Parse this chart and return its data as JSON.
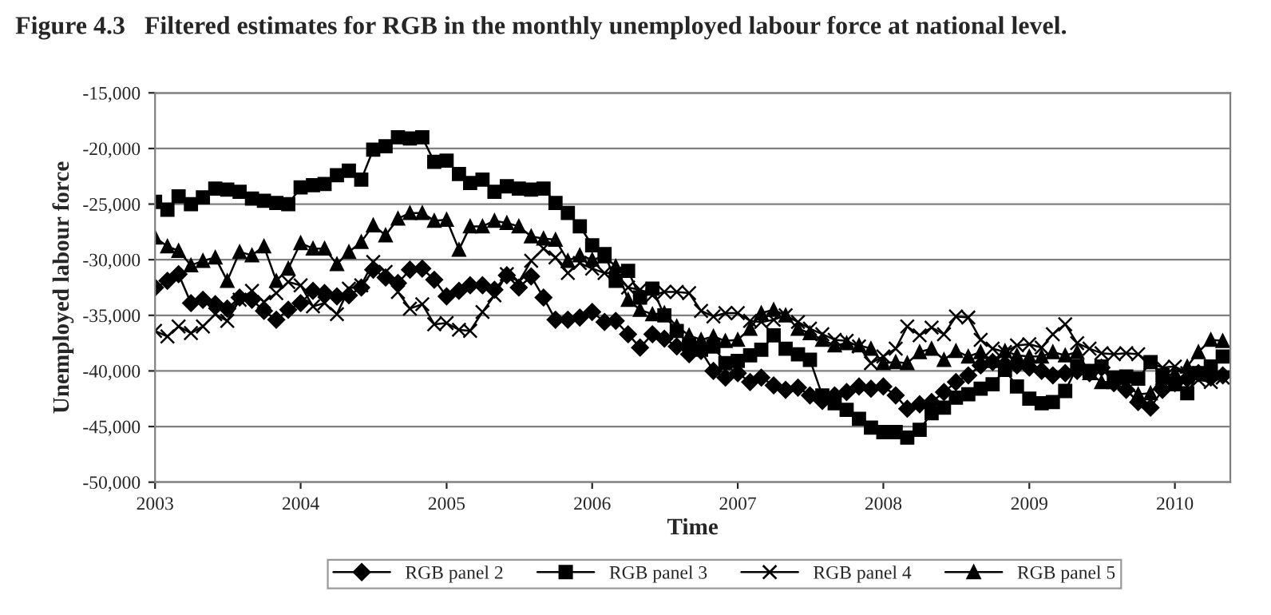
{
  "chart_data": {
    "type": "line",
    "title": "Figure 4.3   Filtered estimates for RGB in the monthly unemployed labour force at national level.",
    "xlabel": "Time",
    "ylabel": "Unemployed labour force",
    "x": [
      "2003-01",
      "2003-02",
      "2003-03",
      "2003-04",
      "2003-05",
      "2003-06",
      "2003-07",
      "2003-08",
      "2003-09",
      "2003-10",
      "2003-11",
      "2003-12",
      "2004-01",
      "2004-02",
      "2004-03",
      "2004-04",
      "2004-05",
      "2004-06",
      "2004-07",
      "2004-08",
      "2004-09",
      "2004-10",
      "2004-11",
      "2004-12",
      "2005-01",
      "2005-02",
      "2005-03",
      "2005-04",
      "2005-05",
      "2005-06",
      "2005-07",
      "2005-08",
      "2005-09",
      "2005-10",
      "2005-11",
      "2005-12",
      "2006-01",
      "2006-02",
      "2006-03",
      "2006-04",
      "2006-05",
      "2006-06",
      "2006-07",
      "2006-08",
      "2006-09",
      "2006-10",
      "2006-11",
      "2006-12",
      "2007-01",
      "2007-02",
      "2007-03",
      "2007-04",
      "2007-05",
      "2007-06",
      "2007-07",
      "2007-08",
      "2007-09",
      "2007-10",
      "2007-11",
      "2007-12",
      "2008-01",
      "2008-02",
      "2008-03",
      "2008-04",
      "2008-05",
      "2008-06",
      "2008-07",
      "2008-08",
      "2008-09",
      "2008-10",
      "2008-11",
      "2008-12",
      "2009-01",
      "2009-02",
      "2009-03",
      "2009-04",
      "2009-05",
      "2009-06",
      "2009-07",
      "2009-08",
      "2009-09",
      "2009-10",
      "2009-11",
      "2009-12",
      "2010-01",
      "2010-02",
      "2010-03",
      "2010-04",
      "2010-05"
    ],
    "series": [
      {
        "name": "RGB panel 2",
        "color": "#000000",
        "marker": "diamond",
        "values": [
          -32500,
          -31900,
          -31300,
          -33900,
          -33600,
          -34000,
          -34400,
          -33400,
          -33600,
          -34600,
          -35400,
          -34500,
          -33900,
          -32800,
          -33000,
          -33300,
          -33200,
          -32500,
          -30900,
          -31600,
          -32100,
          -30900,
          -30800,
          -31800,
          -33300,
          -32800,
          -32300,
          -32300,
          -32700,
          -31400,
          -32500,
          -31500,
          -33400,
          -35400,
          -35400,
          -35200,
          -34700,
          -35600,
          -35500,
          -36700,
          -37900,
          -36700,
          -37100,
          -37800,
          -38500,
          -38200,
          -40000,
          -40600,
          -40200,
          -41000,
          -40600,
          -41300,
          -41700,
          -41500,
          -42200,
          -42700,
          -42200,
          -41900,
          -41400,
          -41600,
          -41400,
          -42200,
          -43400,
          -43000,
          -42800,
          -41900,
          -41000,
          -40400,
          -39500,
          -39200,
          -39400,
          -39500,
          -39700,
          -40000,
          -40400,
          -40200,
          -40000,
          -40200,
          -39700,
          -41100,
          -41700,
          -42800,
          -43300,
          -41700,
          -41100,
          -40700,
          -40200,
          -40600,
          -40400
        ]
      },
      {
        "name": "RGB panel 3",
        "color": "#000000",
        "marker": "square",
        "values": [
          -24800,
          -25500,
          -24300,
          -25000,
          -24400,
          -23600,
          -23700,
          -23900,
          -24500,
          -24700,
          -24900,
          -25000,
          -23500,
          -23300,
          -23200,
          -22400,
          -22000,
          -22800,
          -20100,
          -19800,
          -19000,
          -19100,
          -19000,
          -21200,
          -21100,
          -22300,
          -23100,
          -22800,
          -23900,
          -23400,
          -23600,
          -23700,
          -23600,
          -24900,
          -25800,
          -27000,
          -28700,
          -29500,
          -31900,
          -31000,
          -33400,
          -32600,
          -35000,
          -36400,
          -37600,
          -38100,
          -37800,
          -39300,
          -39100,
          -38600,
          -38100,
          -36800,
          -38000,
          -38500,
          -39000,
          -42200,
          -42900,
          -43500,
          -44300,
          -45100,
          -45500,
          -45500,
          -46000,
          -45300,
          -43800,
          -43300,
          -42400,
          -42100,
          -41600,
          -41200,
          -39900,
          -41400,
          -42500,
          -42900,
          -42800,
          -41800,
          -39600,
          -40000,
          -39600,
          -40600,
          -40500,
          -40700,
          -39200,
          -40400,
          -41200,
          -42000,
          -40200,
          -39600,
          -38700
        ]
      },
      {
        "name": "RGB panel 4",
        "color": "#000000",
        "marker": "cross",
        "values": [
          -36400,
          -36900,
          -36000,
          -36600,
          -36000,
          -34900,
          -35500,
          -33600,
          -32800,
          -33800,
          -33000,
          -32000,
          -32300,
          -34200,
          -33900,
          -34900,
          -32600,
          -32300,
          -30200,
          -31100,
          -32900,
          -34400,
          -34000,
          -35800,
          -35700,
          -36300,
          -36400,
          -34700,
          -33200,
          -31300,
          -32000,
          -30100,
          -29000,
          -29800,
          -31200,
          -30300,
          -30800,
          -31200,
          -31200,
          -32500,
          -32700,
          -33200,
          -32900,
          -32900,
          -33000,
          -34600,
          -35100,
          -34800,
          -34800,
          -35500,
          -35600,
          -35400,
          -35000,
          -35600,
          -36200,
          -36700,
          -37200,
          -37300,
          -37800,
          -39300,
          -38700,
          -38000,
          -36000,
          -36800,
          -36100,
          -36700,
          -35100,
          -35200,
          -37200,
          -38000,
          -38300,
          -37700,
          -37600,
          -37900,
          -36700,
          -35800,
          -37500,
          -38000,
          -38400,
          -38500,
          -38400,
          -38500,
          -39300,
          -39700,
          -39600,
          -40200,
          -40800,
          -41000,
          -40600
        ]
      },
      {
        "name": "RGB panel 5",
        "color": "#000000",
        "marker": "triangle",
        "values": [
          -28000,
          -28800,
          -29200,
          -30500,
          -30100,
          -29800,
          -31900,
          -29300,
          -29600,
          -28800,
          -31900,
          -30800,
          -28500,
          -29000,
          -29000,
          -30400,
          -29300,
          -28400,
          -26900,
          -27800,
          -26300,
          -25800,
          -25800,
          -26500,
          -26400,
          -29100,
          -27000,
          -27000,
          -26500,
          -26700,
          -27000,
          -27900,
          -28100,
          -28200,
          -30100,
          -29600,
          -30000,
          -29700,
          -30600,
          -33600,
          -34500,
          -34900,
          -34800,
          -36000,
          -36800,
          -37200,
          -36900,
          -37300,
          -37200,
          -36200,
          -34800,
          -34500,
          -35000,
          -36200,
          -36600,
          -37200,
          -37700,
          -37500,
          -37700,
          -38000,
          -39300,
          -39200,
          -39300,
          -38300,
          -38000,
          -39000,
          -38200,
          -38700,
          -38300,
          -39100,
          -38200,
          -38600,
          -38700,
          -38700,
          -38300,
          -38600,
          -38300,
          -40200,
          -41000,
          -41000,
          -41200,
          -42100,
          -42000,
          -40600,
          -40200,
          -39600,
          -38300,
          -37200,
          -37300
        ]
      }
    ],
    "xlim": [
      "2003-01-01",
      "2010-05-20"
    ],
    "xticks": [
      "2003",
      "2004",
      "2005",
      "2006",
      "2007",
      "2008",
      "2009",
      "2010"
    ],
    "ylim": [
      -50000,
      -15000
    ],
    "yticks": [
      {
        "value": -50000,
        "label": "-50,000"
      },
      {
        "value": -45000,
        "label": "-45,000"
      },
      {
        "value": -40000,
        "label": "-40,000"
      },
      {
        "value": -35000,
        "label": "-35,000"
      },
      {
        "value": -30000,
        "label": "-30,000"
      },
      {
        "value": -25000,
        "label": "-25,000"
      },
      {
        "value": -20000,
        "label": "-20,000"
      },
      {
        "value": -15000,
        "label": "-15,000"
      }
    ],
    "grid": "y",
    "legend": "bottom",
    "line_style": "solid"
  }
}
